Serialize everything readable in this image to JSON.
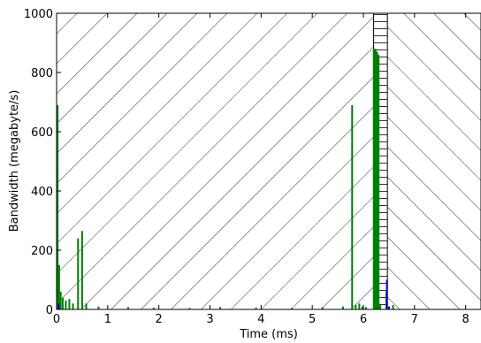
{
  "chart_data": {
    "type": "bar",
    "title": "",
    "xlabel": "Time (ms)",
    "ylabel": "Bandwidth (megabyte/s)",
    "xlim": [
      0,
      8.3
    ],
    "ylim": [
      0,
      1000
    ],
    "xticks": [
      0,
      1,
      2,
      3,
      4,
      5,
      6,
      7,
      8
    ],
    "yticks": [
      0,
      200,
      400,
      600,
      800,
      1000
    ],
    "grid": false,
    "legend": "none",
    "colors": {
      "primary": "#008000",
      "secondary": "#0000cc",
      "frame": "#000000"
    },
    "regions": [
      {
        "x_start": 0.0,
        "x_end": 6.2,
        "hatch": "forward-diagonal"
      },
      {
        "x_start": 6.2,
        "x_end": 6.47,
        "hatch": "horizontal"
      },
      {
        "x_start": 6.47,
        "x_end": 8.3,
        "hatch": "back-diagonal"
      }
    ],
    "series": [
      {
        "color": "#008000",
        "x": [
          0.02,
          0.05,
          0.08,
          0.12,
          0.18,
          0.25,
          0.32,
          0.42,
          0.5,
          0.58,
          0.82,
          1.4,
          1.9,
          2.6,
          3.2,
          3.9,
          4.6,
          5.2,
          5.6,
          5.78,
          5.85,
          5.92,
          5.98,
          6.05,
          6.22,
          6.25,
          6.28,
          6.33,
          6.45,
          6.58
        ],
        "values": [
          690,
          150,
          60,
          40,
          30,
          35,
          20,
          240,
          265,
          20,
          10,
          8,
          6,
          5,
          8,
          6,
          5,
          8,
          10,
          690,
          15,
          20,
          10,
          8,
          880,
          870,
          860,
          15,
          60,
          15
        ]
      },
      {
        "color": "#0000cc",
        "x": [
          0.04,
          6.46,
          6.5
        ],
        "values": [
          20,
          100,
          10
        ]
      }
    ]
  }
}
